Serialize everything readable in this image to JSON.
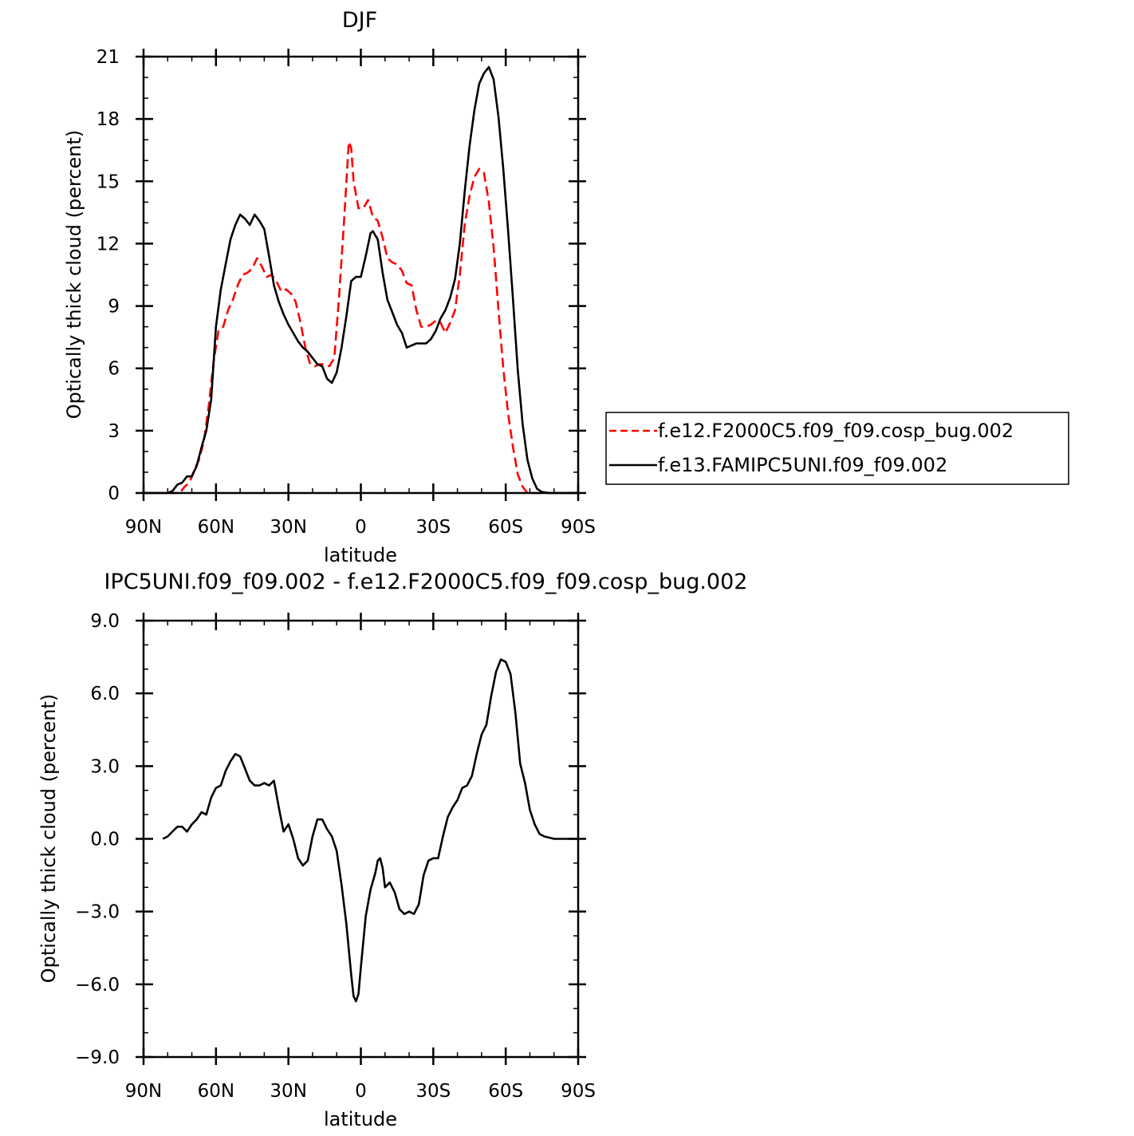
{
  "chart_data": [
    {
      "type": "line",
      "title": "DJF",
      "xlabel": "latitude",
      "ylabel": "Optically thick cloud (percent)",
      "xlim": [
        -90,
        90
      ],
      "ylim": [
        0,
        21
      ],
      "x_ticks": [
        -90,
        -60,
        -30,
        0,
        30,
        60,
        90
      ],
      "x_tick_labels": [
        "90N",
        "60N",
        "30N",
        "0",
        "30S",
        "60S",
        "90S"
      ],
      "y_ticks": [
        0,
        3,
        6,
        9,
        12,
        15,
        18,
        21
      ],
      "y_tick_labels": [
        "0",
        "3",
        "6",
        "9",
        "12",
        "15",
        "18",
        "21"
      ],
      "legend": "right-of-plot",
      "series": [
        {
          "name": "f.e12.F2000C5.f09_f09.cosp_bug.002",
          "color": "#ff0000",
          "dash": "dashed",
          "points": [
            [
              -80,
              0
            ],
            [
              -75,
              0
            ],
            [
              -73,
              0.3
            ],
            [
              -71,
              0.5
            ],
            [
              -69,
              1.1
            ],
            [
              -67,
              1.6
            ],
            [
              -65,
              2.5
            ],
            [
              -63,
              4.2
            ],
            [
              -61,
              6.3
            ],
            [
              -59,
              7.8
            ],
            [
              -57,
              8.0
            ],
            [
              -55,
              8.8
            ],
            [
              -53,
              9.3
            ],
            [
              -51,
              10.0
            ],
            [
              -49,
              10.5
            ],
            [
              -47,
              10.6
            ],
            [
              -45,
              10.8
            ],
            [
              -43,
              11.3
            ],
            [
              -41,
              10.9
            ],
            [
              -39,
              10.4
            ],
            [
              -37,
              10.5
            ],
            [
              -35,
              10.2
            ],
            [
              -33,
              9.7
            ],
            [
              -31,
              9.8
            ],
            [
              -29,
              9.6
            ],
            [
              -27,
              9.2
            ],
            [
              -25,
              8.2
            ],
            [
              -23,
              7.0
            ],
            [
              -21,
              6.2
            ],
            [
              -19,
              6.1
            ],
            [
              -17,
              6.2
            ],
            [
              -15,
              6.2
            ],
            [
              -13,
              6.1
            ],
            [
              -11,
              6.5
            ],
            [
              -9,
              9.5
            ],
            [
              -7,
              13.0
            ],
            [
              -5,
              16.9
            ],
            [
              -4,
              16.6
            ],
            [
              -3,
              15.0
            ],
            [
              -1,
              13.7
            ],
            [
              1,
              13.7
            ],
            [
              3,
              14.1
            ],
            [
              5,
              13.3
            ],
            [
              7,
              13.1
            ],
            [
              9,
              12.3
            ],
            [
              11,
              11.3
            ],
            [
              13,
              11.1
            ],
            [
              15,
              11.0
            ],
            [
              17,
              10.7
            ],
            [
              19,
              10.1
            ],
            [
              21,
              10.0
            ],
            [
              23,
              8.8
            ],
            [
              25,
              8.0
            ],
            [
              27,
              8.0
            ],
            [
              29,
              8.1
            ],
            [
              31,
              8.3
            ],
            [
              33,
              8.2
            ],
            [
              35,
              7.7
            ],
            [
              37,
              8.2
            ],
            [
              39,
              8.8
            ],
            [
              41,
              10.5
            ],
            [
              43,
              12.9
            ],
            [
              45,
              14.3
            ],
            [
              47,
              15.2
            ],
            [
              49,
              15.6
            ],
            [
              51,
              15.4
            ],
            [
              53,
              14.0
            ],
            [
              55,
              11.8
            ],
            [
              57,
              8.8
            ],
            [
              59,
              6.0
            ],
            [
              61,
              3.8
            ],
            [
              63,
              2.2
            ],
            [
              65,
              0.9
            ],
            [
              67,
              0.3
            ],
            [
              69,
              0
            ],
            [
              72,
              0
            ],
            [
              90,
              0
            ]
          ]
        },
        {
          "name": "f.e13.FAMIPC5UNI.f09_f09.002",
          "color": "#000000",
          "dash": "solid",
          "points": [
            [
              -90,
              0
            ],
            [
              -80,
              0
            ],
            [
              -78,
              0.1
            ],
            [
              -76,
              0.4
            ],
            [
              -74,
              0.5
            ],
            [
              -72,
              0.8
            ],
            [
              -70,
              0.8
            ],
            [
              -68,
              1.3
            ],
            [
              -66,
              2.2
            ],
            [
              -64,
              3.0
            ],
            [
              -62,
              4.5
            ],
            [
              -60,
              8.0
            ],
            [
              -58,
              9.8
            ],
            [
              -56,
              11.0
            ],
            [
              -54,
              12.2
            ],
            [
              -52,
              12.9
            ],
            [
              -50,
              13.4
            ],
            [
              -48,
              13.2
            ],
            [
              -46,
              12.9
            ],
            [
              -44,
              13.4
            ],
            [
              -42,
              13.1
            ],
            [
              -40,
              12.7
            ],
            [
              -38,
              11.4
            ],
            [
              -36,
              10.0
            ],
            [
              -34,
              9.2
            ],
            [
              -32,
              8.6
            ],
            [
              -30,
              8.1
            ],
            [
              -28,
              7.7
            ],
            [
              -26,
              7.3
            ],
            [
              -24,
              7.0
            ],
            [
              -22,
              6.8
            ],
            [
              -20,
              6.5
            ],
            [
              -18,
              6.2
            ],
            [
              -16,
              6.1
            ],
            [
              -14,
              5.5
            ],
            [
              -12,
              5.3
            ],
            [
              -10,
              5.8
            ],
            [
              -8,
              7.0
            ],
            [
              -6,
              8.5
            ],
            [
              -4,
              10.2
            ],
            [
              -2,
              10.4
            ],
            [
              0,
              10.4
            ],
            [
              2,
              11.4
            ],
            [
              4,
              12.5
            ],
            [
              5,
              12.6
            ],
            [
              7,
              12.2
            ],
            [
              9,
              10.6
            ],
            [
              11,
              9.3
            ],
            [
              13,
              8.7
            ],
            [
              15,
              8.1
            ],
            [
              17,
              7.7
            ],
            [
              19,
              7.0
            ],
            [
              21,
              7.1
            ],
            [
              23,
              7.2
            ],
            [
              25,
              7.2
            ],
            [
              27,
              7.2
            ],
            [
              29,
              7.4
            ],
            [
              31,
              7.8
            ],
            [
              33,
              8.4
            ],
            [
              35,
              8.8
            ],
            [
              37,
              9.4
            ],
            [
              39,
              10.3
            ],
            [
              41,
              12.0
            ],
            [
              43,
              14.5
            ],
            [
              45,
              16.7
            ],
            [
              47,
              18.4
            ],
            [
              49,
              19.7
            ],
            [
              51,
              20.2
            ],
            [
              53,
              20.5
            ],
            [
              55,
              19.9
            ],
            [
              57,
              18.1
            ],
            [
              59,
              15.6
            ],
            [
              61,
              12.6
            ],
            [
              63,
              9.3
            ],
            [
              65,
              5.9
            ],
            [
              67,
              3.3
            ],
            [
              69,
              1.6
            ],
            [
              71,
              0.7
            ],
            [
              73,
              0.2
            ],
            [
              75,
              0.05
            ],
            [
              78,
              0
            ],
            [
              90,
              0
            ]
          ]
        }
      ]
    },
    {
      "type": "line",
      "title": "IPC5UNI.f09_f09.002 - f.e12.F2000C5.f09_f09.cosp_bug.002",
      "xlabel": "latitude",
      "ylabel": "Optically thick cloud (percent)",
      "xlim": [
        -90,
        90
      ],
      "ylim": [
        -9,
        9
      ],
      "x_ticks": [
        -90,
        -60,
        -30,
        0,
        30,
        60,
        90
      ],
      "x_tick_labels": [
        "90N",
        "60N",
        "30N",
        "0",
        "30S",
        "60S",
        "90S"
      ],
      "y_ticks": [
        -9,
        -6,
        -3,
        0,
        3,
        6,
        9
      ],
      "y_tick_labels": [
        "−9.0",
        "−6.0",
        "−3.0",
        "0.0",
        "3.0",
        "6.0",
        "9.0"
      ],
      "series": [
        {
          "color": "#000000",
          "dash": "solid",
          "points": [
            [
              -82,
              0
            ],
            [
              -80,
              0.1
            ],
            [
              -78,
              0.3
            ],
            [
              -76,
              0.5
            ],
            [
              -74,
              0.5
            ],
            [
              -72,
              0.3
            ],
            [
              -70,
              0.6
            ],
            [
              -68,
              0.8
            ],
            [
              -66,
              1.1
            ],
            [
              -64,
              1.0
            ],
            [
              -62,
              1.7
            ],
            [
              -60,
              2.1
            ],
            [
              -58,
              2.2
            ],
            [
              -56,
              2.8
            ],
            [
              -54,
              3.2
            ],
            [
              -52,
              3.5
            ],
            [
              -50,
              3.4
            ],
            [
              -48,
              2.9
            ],
            [
              -46,
              2.4
            ],
            [
              -44,
              2.2
            ],
            [
              -42,
              2.2
            ],
            [
              -40,
              2.3
            ],
            [
              -38,
              2.2
            ],
            [
              -36,
              2.4
            ],
            [
              -34,
              1.3
            ],
            [
              -32,
              0.3
            ],
            [
              -30,
              0.6
            ],
            [
              -28,
              0.0
            ],
            [
              -26,
              -0.8
            ],
            [
              -24,
              -1.1
            ],
            [
              -22,
              -0.9
            ],
            [
              -20,
              0.1
            ],
            [
              -18,
              0.8
            ],
            [
              -16,
              0.8
            ],
            [
              -14,
              0.4
            ],
            [
              -12,
              0.1
            ],
            [
              -10,
              -0.5
            ],
            [
              -8,
              -1.9
            ],
            [
              -6,
              -3.5
            ],
            [
              -4,
              -5.6
            ],
            [
              -3,
              -6.5
            ],
            [
              -2,
              -6.7
            ],
            [
              -1,
              -6.4
            ],
            [
              0,
              -5.3
            ],
            [
              2,
              -3.2
            ],
            [
              4,
              -2.1
            ],
            [
              6,
              -1.4
            ],
            [
              7,
              -0.9
            ],
            [
              8,
              -0.8
            ],
            [
              9,
              -1.2
            ],
            [
              10,
              -2.0
            ],
            [
              12,
              -1.8
            ],
            [
              14,
              -2.2
            ],
            [
              16,
              -2.9
            ],
            [
              18,
              -3.1
            ],
            [
              20,
              -3.0
            ],
            [
              22,
              -3.1
            ],
            [
              24,
              -2.7
            ],
            [
              26,
              -1.5
            ],
            [
              28,
              -0.9
            ],
            [
              30,
              -0.8
            ],
            [
              32,
              -0.8
            ],
            [
              34,
              0.1
            ],
            [
              36,
              0.9
            ],
            [
              38,
              1.3
            ],
            [
              40,
              1.6
            ],
            [
              42,
              2.1
            ],
            [
              44,
              2.2
            ],
            [
              46,
              2.6
            ],
            [
              48,
              3.5
            ],
            [
              50,
              4.3
            ],
            [
              52,
              4.7
            ],
            [
              54,
              5.9
            ],
            [
              56,
              6.9
            ],
            [
              58,
              7.4
            ],
            [
              60,
              7.3
            ],
            [
              62,
              6.8
            ],
            [
              64,
              5.2
            ],
            [
              66,
              3.1
            ],
            [
              68,
              2.3
            ],
            [
              70,
              1.2
            ],
            [
              72,
              0.6
            ],
            [
              74,
              0.2
            ],
            [
              76,
              0.1
            ],
            [
              78,
              0.05
            ],
            [
              80,
              0
            ],
            [
              90,
              0
            ]
          ]
        }
      ]
    }
  ]
}
